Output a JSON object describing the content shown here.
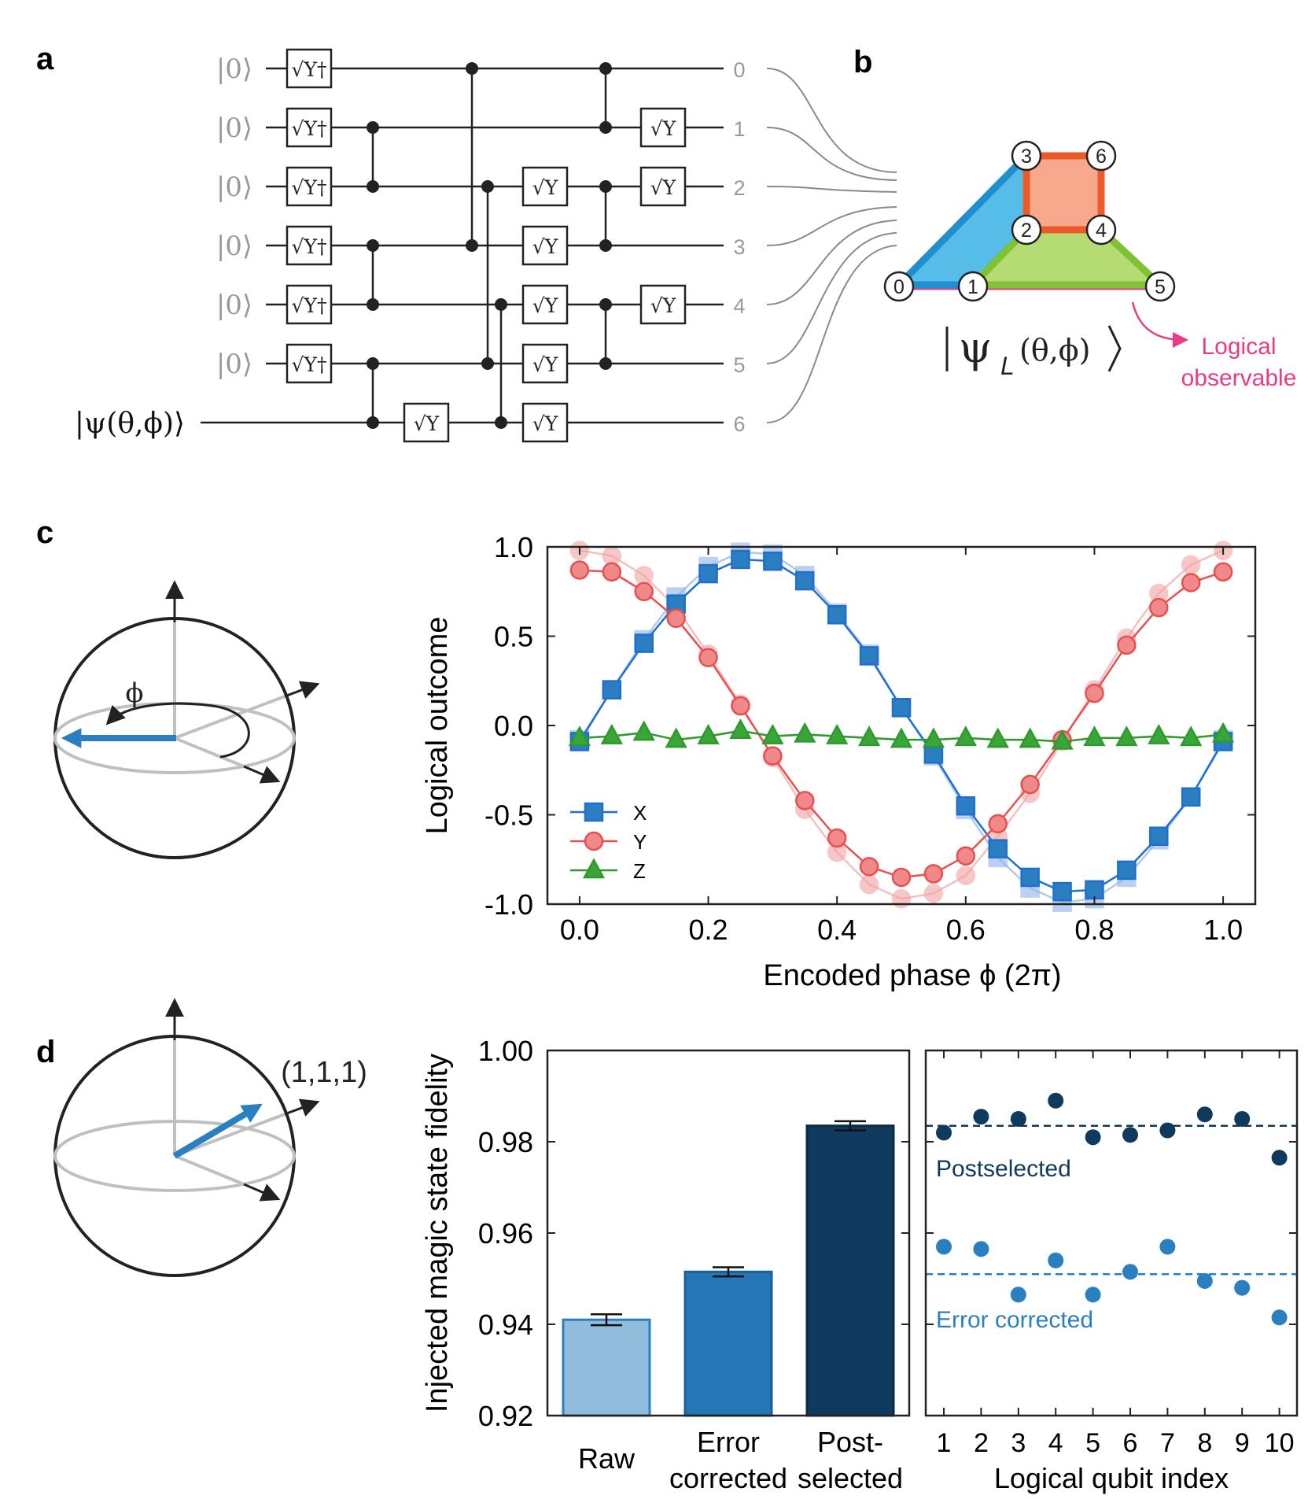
{
  "panels": {
    "a": "a",
    "b": "b",
    "c": "c",
    "d": "d"
  },
  "circuit": {
    "inputs": [
      "|0⟩",
      "|0⟩",
      "|0⟩",
      "|0⟩",
      "|0⟩",
      "|0⟩",
      "|ψ(θ,ϕ)⟩"
    ],
    "outputs": [
      "0",
      "1",
      "2",
      "3",
      "4",
      "5",
      "6"
    ],
    "gate_sqrt_y_dagger": "√Y†",
    "gate_sqrt_y": "√Y"
  },
  "lattice": {
    "nodes": [
      "0",
      "1",
      "2",
      "3",
      "4",
      "5",
      "6"
    ],
    "logical_state": "|ψL(θ,ϕ)⟩",
    "logical_state_main": "ψ",
    "logical_state_sub": "L",
    "logical_state_args": "(θ,ϕ)",
    "observable_label_1": "Logical",
    "observable_label_2": "observable",
    "colors": {
      "blue": "#56bde9",
      "blue_edge": "#1f8fd0",
      "green": "#b4dc73",
      "green_edge": "#7fc234",
      "orange": "#f8a88c",
      "orange_edge": "#ec5a2a",
      "magenta": "#e83c86"
    }
  },
  "bloch_c": {
    "phi_label": "ϕ"
  },
  "bloch_d": {
    "point_label": "(1,1,1)"
  },
  "chart_data": [
    {
      "type": "line",
      "panel": "c",
      "xlabel": "Encoded phase ϕ (2π)",
      "ylabel": "Logical outcome",
      "xlim": [
        -0.05,
        1.05
      ],
      "ylim": [
        -1.0,
        1.0
      ],
      "xticks": [
        "0.0",
        "0.2",
        "0.4",
        "0.6",
        "0.8",
        "1.0"
      ],
      "yticks": [
        "1.0",
        "0.5",
        "0.0",
        "-0.5",
        "-1.0"
      ],
      "legend_position": "bottom-left",
      "x": [
        0,
        0.05,
        0.1,
        0.15,
        0.2,
        0.25,
        0.3,
        0.35,
        0.4,
        0.45,
        0.5,
        0.55,
        0.6,
        0.65,
        0.7,
        0.75,
        0.8,
        0.85,
        0.9,
        0.95,
        1.0
      ],
      "series": [
        {
          "name": "X",
          "marker": "square",
          "color": "#1f6fd0",
          "values": [
            -0.09,
            0.2,
            0.46,
            0.68,
            0.85,
            0.93,
            0.92,
            0.81,
            0.62,
            0.39,
            0.1,
            -0.16,
            -0.45,
            -0.69,
            -0.85,
            -0.93,
            -0.92,
            -0.81,
            -0.62,
            -0.4,
            -0.09
          ],
          "faint_values": [
            -0.08,
            0.2,
            0.48,
            0.72,
            0.89,
            0.97,
            0.96,
            0.84,
            0.63,
            0.4,
            0.1,
            -0.17,
            -0.47,
            -0.74,
            -0.91,
            -0.99,
            -0.97,
            -0.85,
            -0.64,
            -0.4,
            -0.08
          ]
        },
        {
          "name": "Y",
          "marker": "circle",
          "color": "#e8504f",
          "values": [
            0.87,
            0.86,
            0.75,
            0.6,
            0.38,
            0.11,
            -0.17,
            -0.42,
            -0.63,
            -0.79,
            -0.85,
            -0.83,
            -0.73,
            -0.55,
            -0.33,
            -0.08,
            0.18,
            0.45,
            0.66,
            0.8,
            0.86
          ],
          "faint_values": [
            0.98,
            0.95,
            0.84,
            0.66,
            0.4,
            0.12,
            -0.18,
            -0.47,
            -0.71,
            -0.89,
            -0.97,
            -0.94,
            -0.84,
            -0.62,
            -0.38,
            -0.09,
            0.2,
            0.49,
            0.74,
            0.9,
            0.98
          ]
        },
        {
          "name": "Z",
          "marker": "triangle",
          "color": "#2e9a2e",
          "values": [
            -0.07,
            -0.06,
            -0.04,
            -0.08,
            -0.06,
            -0.03,
            -0.06,
            -0.05,
            -0.06,
            -0.07,
            -0.08,
            -0.08,
            -0.07,
            -0.08,
            -0.08,
            -0.09,
            -0.07,
            -0.07,
            -0.06,
            -0.07,
            -0.05
          ],
          "faint_values": [
            -0.07,
            -0.06,
            -0.04,
            -0.08,
            -0.06,
            -0.03,
            -0.06,
            -0.05,
            -0.06,
            -0.07,
            -0.08,
            -0.08,
            -0.07,
            -0.08,
            -0.08,
            -0.09,
            -0.07,
            -0.07,
            -0.06,
            -0.07,
            -0.05
          ]
        }
      ]
    },
    {
      "type": "bar",
      "panel": "d",
      "ylabel": "Injected magic state fidelity",
      "ylim": [
        0.92,
        1.0
      ],
      "yticks": [
        "1.00",
        "0.98",
        "0.96",
        "0.94",
        "0.92"
      ],
      "categories": [
        [
          "Raw"
        ],
        [
          "Error",
          "corrected"
        ],
        [
          "Post-",
          "selected"
        ]
      ],
      "values": [
        0.941,
        0.9515,
        0.9835
      ],
      "errors": [
        0.0012,
        0.001,
        0.001
      ],
      "colors": [
        "#92bcdc",
        "#2576b6",
        "#0f3a5e"
      ]
    },
    {
      "type": "scatter",
      "panel": "d",
      "xlabel": "Logical qubit index",
      "ylim": [
        0.92,
        1.0
      ],
      "categories": [
        "1",
        "2",
        "3",
        "4",
        "5",
        "6",
        "7",
        "8",
        "9",
        "10"
      ],
      "series": [
        {
          "name": "Postselected",
          "color": "#0f3a5e",
          "mean": 0.9835,
          "values": [
            0.982,
            0.9855,
            0.985,
            0.989,
            0.981,
            0.9815,
            0.9825,
            0.986,
            0.985,
            0.9765
          ],
          "errors": [
            0.0015,
            0.0015,
            0.0015,
            0.0015,
            0.0015,
            0.0015,
            0.0015,
            0.0015,
            0.0015,
            0.0015
          ]
        },
        {
          "name": "Error corrected",
          "color": "#2a7fc0",
          "mean": 0.951,
          "values": [
            0.957,
            0.9565,
            0.9465,
            0.954,
            0.9465,
            0.9515,
            0.957,
            0.9495,
            0.948,
            0.9415
          ],
          "errors": [
            0.0017,
            0.0017,
            0.0017,
            0.0017,
            0.0017,
            0.0017,
            0.0017,
            0.0017,
            0.0017,
            0.0017
          ]
        }
      ]
    }
  ]
}
